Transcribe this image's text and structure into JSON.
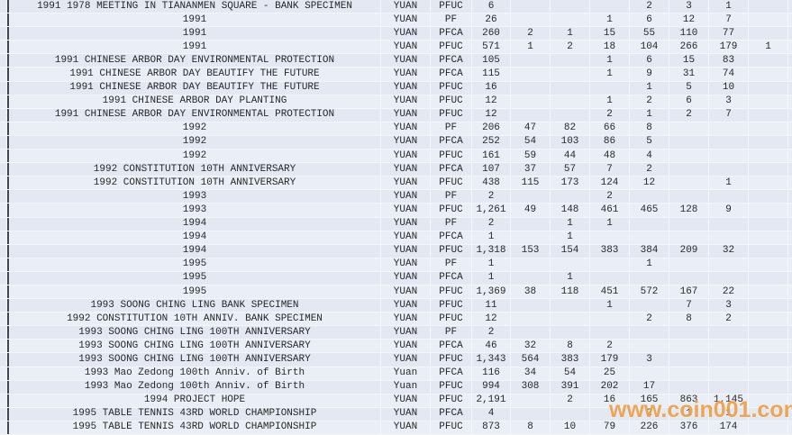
{
  "watermark": {
    "text": "www.coin001.com",
    "color": "#ED9A3C"
  },
  "colors": {
    "row_odd": "#e3e8f2",
    "row_even": "#eaeef6",
    "gridline": "#f3f6fb",
    "left_frame": "#43464c",
    "text": "#26282b"
  },
  "table": {
    "rows": [
      {
        "description": "1991 1978 MEETING IN TIANANMEN SQUARE - BANK SPECIMEN",
        "currency": "YUAN",
        "grade": "PFUC",
        "total": "6",
        "values": [
          "",
          "",
          "",
          "2",
          "3",
          "1",
          ""
        ]
      },
      {
        "description": "1991",
        "currency": "YUAN",
        "grade": "PF",
        "total": "26",
        "values": [
          "",
          "",
          "1",
          "6",
          "12",
          "7",
          ""
        ]
      },
      {
        "description": "1991",
        "currency": "YUAN",
        "grade": "PFCA",
        "total": "260",
        "values": [
          "2",
          "1",
          "15",
          "55",
          "110",
          "77",
          ""
        ]
      },
      {
        "description": "1991",
        "currency": "YUAN",
        "grade": "PFUC",
        "total": "571",
        "values": [
          "1",
          "2",
          "18",
          "104",
          "266",
          "179",
          "1"
        ]
      },
      {
        "description": "1991 CHINESE ARBOR DAY ENVIRONMENTAL PROTECTION",
        "currency": "YUAN",
        "grade": "PFCA",
        "total": "105",
        "values": [
          "",
          "",
          "1",
          "6",
          "15",
          "83",
          ""
        ]
      },
      {
        "description": "1991 CHINESE ARBOR DAY BEAUTIFY THE FUTURE",
        "currency": "YUAN",
        "grade": "PFCA",
        "total": "115",
        "values": [
          "",
          "",
          "1",
          "9",
          "31",
          "74",
          ""
        ]
      },
      {
        "description": "1991 CHINESE ARBOR DAY BEAUTIFY THE FUTURE",
        "currency": "YUAN",
        "grade": "PFUC",
        "total": "16",
        "values": [
          "",
          "",
          "",
          "1",
          "5",
          "10",
          ""
        ]
      },
      {
        "description": "1991 CHINESE ARBOR DAY PLANTING",
        "currency": "YUAN",
        "grade": "PFUC",
        "total": "12",
        "values": [
          "",
          "",
          "1",
          "2",
          "6",
          "3",
          ""
        ]
      },
      {
        "description": "1991 CHINESE ARBOR DAY ENVIRONMENTAL PROTECTION",
        "currency": "YUAN",
        "grade": "PFUC",
        "total": "12",
        "values": [
          "",
          "",
          "2",
          "1",
          "2",
          "7",
          ""
        ]
      },
      {
        "description": "1992",
        "currency": "YUAN",
        "grade": "PF",
        "total": "206",
        "values": [
          "47",
          "82",
          "66",
          "8",
          "",
          "",
          ""
        ]
      },
      {
        "description": "1992",
        "currency": "YUAN",
        "grade": "PFCA",
        "total": "252",
        "values": [
          "54",
          "103",
          "86",
          "5",
          "",
          "",
          ""
        ]
      },
      {
        "description": "1992",
        "currency": "YUAN",
        "grade": "PFUC",
        "total": "161",
        "values": [
          "59",
          "44",
          "48",
          "4",
          "",
          "",
          ""
        ]
      },
      {
        "description": "1992 CONSTITUTION 10TH ANNIVERSARY",
        "currency": "YUAN",
        "grade": "PFCA",
        "total": "107",
        "values": [
          "37",
          "57",
          "7",
          "2",
          "",
          "",
          ""
        ]
      },
      {
        "description": "1992 CONSTITUTION 10TH ANNIVERSARY",
        "currency": "YUAN",
        "grade": "PFUC",
        "total": "438",
        "values": [
          "115",
          "173",
          "124",
          "12",
          "",
          "1",
          ""
        ]
      },
      {
        "description": "1993",
        "currency": "YUAN",
        "grade": "PF",
        "total": "2",
        "values": [
          "",
          "",
          "2",
          "",
          "",
          "",
          ""
        ]
      },
      {
        "description": "1993",
        "currency": "YUAN",
        "grade": "PFUC",
        "total": "1,261",
        "values": [
          "49",
          "148",
          "461",
          "465",
          "128",
          "9",
          ""
        ]
      },
      {
        "description": "1994",
        "currency": "YUAN",
        "grade": "PF",
        "total": "2",
        "values": [
          "",
          "1",
          "1",
          "",
          "",
          "",
          ""
        ]
      },
      {
        "description": "1994",
        "currency": "YUAN",
        "grade": "PFCA",
        "total": "1",
        "values": [
          "",
          "1",
          "",
          "",
          "",
          "",
          ""
        ]
      },
      {
        "description": "1994",
        "currency": "YUAN",
        "grade": "PFUC",
        "total": "1,318",
        "values": [
          "153",
          "154",
          "383",
          "384",
          "209",
          "32",
          ""
        ]
      },
      {
        "description": "1995",
        "currency": "YUAN",
        "grade": "PF",
        "total": "1",
        "values": [
          "",
          "",
          "",
          "1",
          "",
          "",
          ""
        ]
      },
      {
        "description": "1995",
        "currency": "YUAN",
        "grade": "PFCA",
        "total": "1",
        "values": [
          "",
          "1",
          "",
          "",
          "",
          "",
          ""
        ]
      },
      {
        "description": "1995",
        "currency": "YUAN",
        "grade": "PFUC",
        "total": "1,369",
        "values": [
          "38",
          "118",
          "451",
          "572",
          "167",
          "22",
          ""
        ]
      },
      {
        "description": "1993 SOONG CHING LING BANK SPECIMEN",
        "currency": "YUAN",
        "grade": "PFUC",
        "total": "11",
        "values": [
          "",
          "",
          "1",
          "",
          "7",
          "3",
          ""
        ]
      },
      {
        "description": "1992 CONSTITUTION 10TH ANNIV. BANK SPECIMEN",
        "currency": "YUAN",
        "grade": "PFUC",
        "total": "12",
        "values": [
          "",
          "",
          "",
          "2",
          "8",
          "2",
          ""
        ]
      },
      {
        "description": "1993 SOONG CHING LING 100TH ANNIVERSARY",
        "currency": "YUAN",
        "grade": "PF",
        "total": "2",
        "values": [
          "",
          "",
          "",
          "",
          "",
          "",
          ""
        ]
      },
      {
        "description": "1993 SOONG CHING LING 100TH ANNIVERSARY",
        "currency": "YUAN",
        "grade": "PFCA",
        "total": "46",
        "values": [
          "32",
          "8",
          "2",
          "",
          "",
          "",
          ""
        ]
      },
      {
        "description": "1993 SOONG CHING LING 100TH ANNIVERSARY",
        "currency": "YUAN",
        "grade": "PFUC",
        "total": "1,343",
        "values": [
          "564",
          "383",
          "179",
          "3",
          "",
          "",
          ""
        ]
      },
      {
        "description": "1993 Mao Zedong 100th Anniv. of Birth",
        "currency": "Yuan",
        "grade": "PFCA",
        "total": "116",
        "values": [
          "34",
          "54",
          "25",
          "",
          "",
          "",
          ""
        ]
      },
      {
        "description": "1993 Mao Zedong 100th Anniv. of Birth",
        "currency": "Yuan",
        "grade": "PFUC",
        "total": "994",
        "values": [
          "308",
          "391",
          "202",
          "17",
          "",
          "",
          ""
        ]
      },
      {
        "description": "1994 PROJECT HOPE",
        "currency": "YUAN",
        "grade": "PFUC",
        "total": "2,191",
        "values": [
          "",
          "2",
          "16",
          "165",
          "863",
          "1,145",
          ""
        ]
      },
      {
        "description": "1995 TABLE TENNIS 43RD WORLD CHAMPIONSHIP",
        "currency": "YUAN",
        "grade": "PFCA",
        "total": "4",
        "values": [
          "",
          "",
          "",
          "2",
          "1",
          "1",
          ""
        ]
      },
      {
        "description": "1995 TABLE TENNIS 43RD WORLD CHAMPIONSHIP",
        "currency": "YUAN",
        "grade": "PFUC",
        "total": "873",
        "values": [
          "8",
          "10",
          "79",
          "226",
          "376",
          "174",
          ""
        ]
      }
    ]
  }
}
